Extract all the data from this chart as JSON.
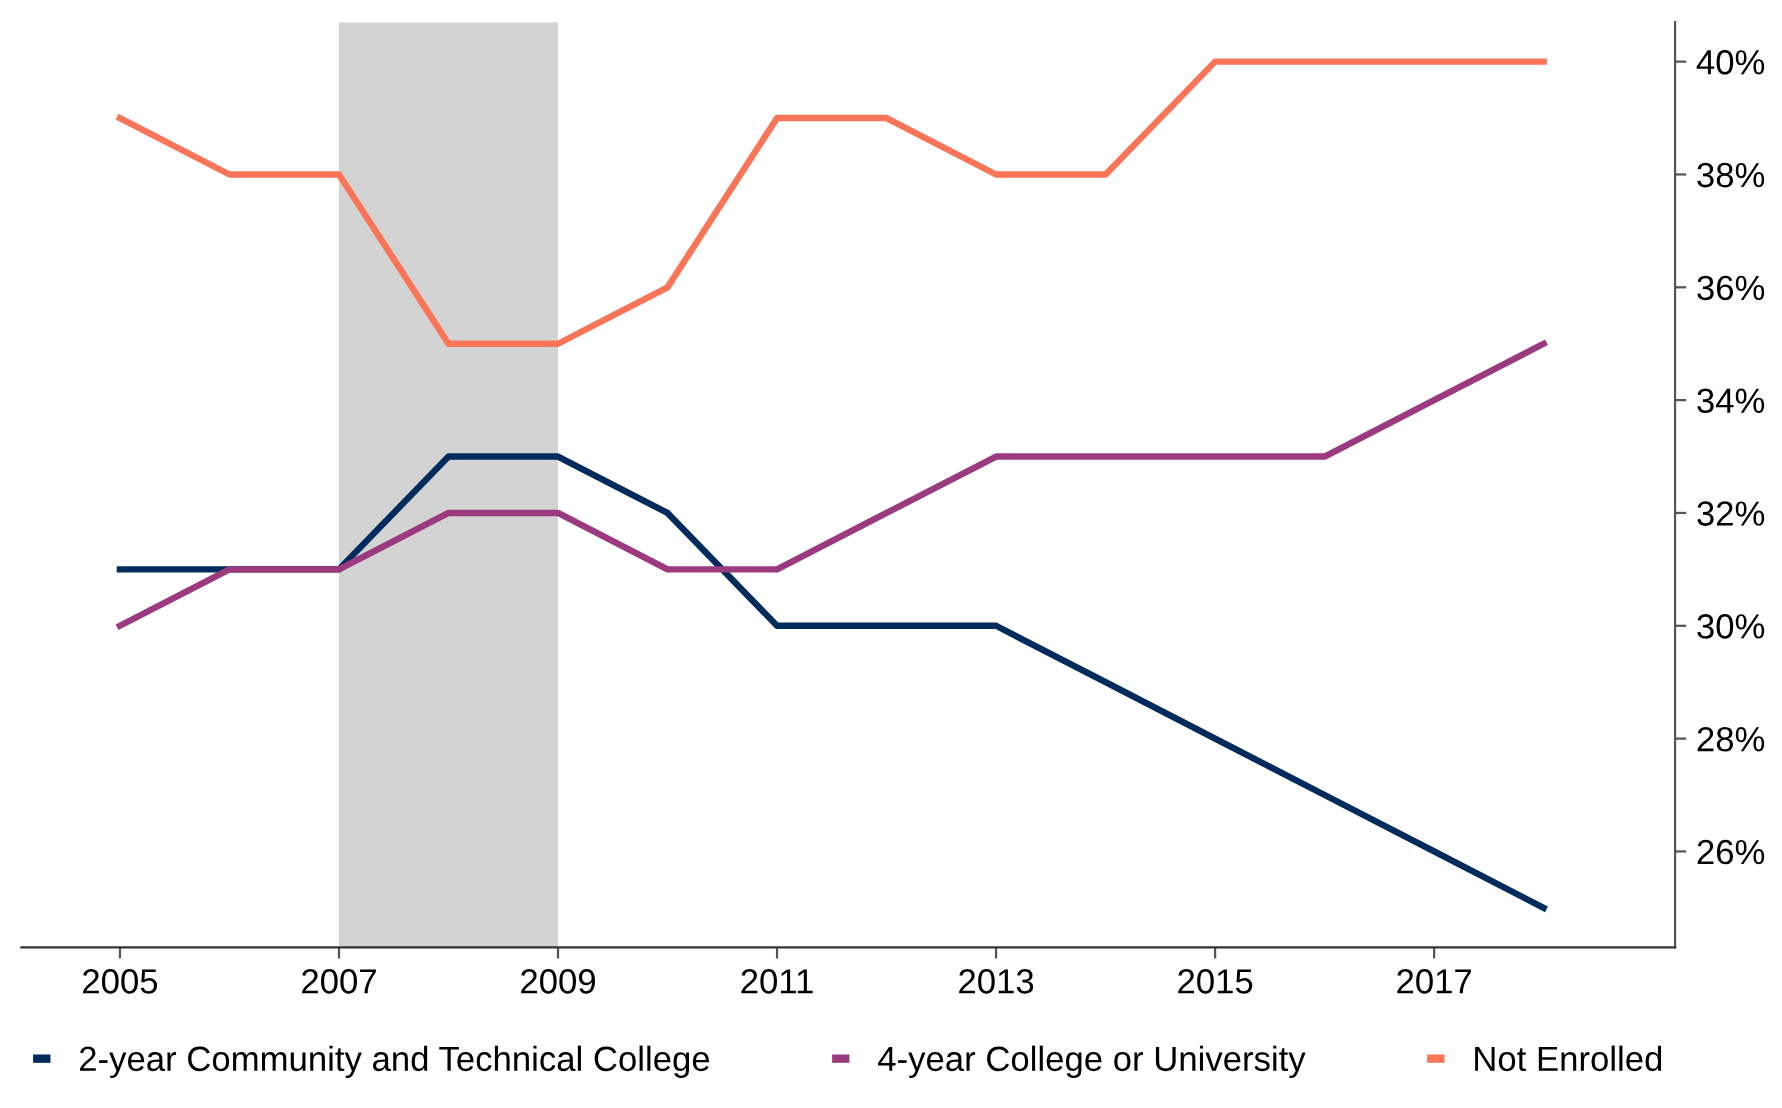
{
  "chart_data": {
    "type": "line",
    "x": [
      2005,
      2006,
      2007,
      2008,
      2009,
      2010,
      2011,
      2012,
      2013,
      2014,
      2015,
      2016,
      2017,
      2018
    ],
    "series": [
      {
        "name": "2-year Community and Technical College",
        "color": "#002b5c",
        "values": [
          31,
          31,
          31,
          33,
          33,
          32,
          30,
          30,
          30,
          29,
          28,
          27,
          26,
          25
        ]
      },
      {
        "name": "4-year College or University",
        "color": "#9c3a7f",
        "values": [
          30,
          31,
          31,
          32,
          32,
          31,
          31,
          32,
          33,
          33,
          33,
          33,
          34,
          35
        ]
      },
      {
        "name": "Not Enrolled",
        "color": "#fa7558",
        "values": [
          39,
          38,
          38,
          35,
          35,
          36,
          39,
          39,
          38,
          38,
          40,
          40,
          40,
          40
        ]
      }
    ],
    "xlim": [
      2004.1,
      2019.2
    ],
    "xticks": [
      2005,
      2007,
      2009,
      2011,
      2013,
      2015,
      2017
    ],
    "ylim": [
      24.3,
      40.7
    ],
    "yticks": [
      {
        "value": 26,
        "label": "26%"
      },
      {
        "value": 28,
        "label": "28%"
      },
      {
        "value": 30,
        "label": "30%"
      },
      {
        "value": 32,
        "label": "32%"
      },
      {
        "value": 34,
        "label": "34%"
      },
      {
        "value": 36,
        "label": "36%"
      },
      {
        "value": 38,
        "label": "38%"
      },
      {
        "value": 40,
        "label": "40%"
      }
    ],
    "bands": [
      {
        "axis": "x",
        "from": 2007,
        "to": 2009,
        "color": "#d3d3d3"
      }
    ],
    "grid": false,
    "legend": "bottom",
    "marker": "none",
    "line_style": "solid"
  }
}
